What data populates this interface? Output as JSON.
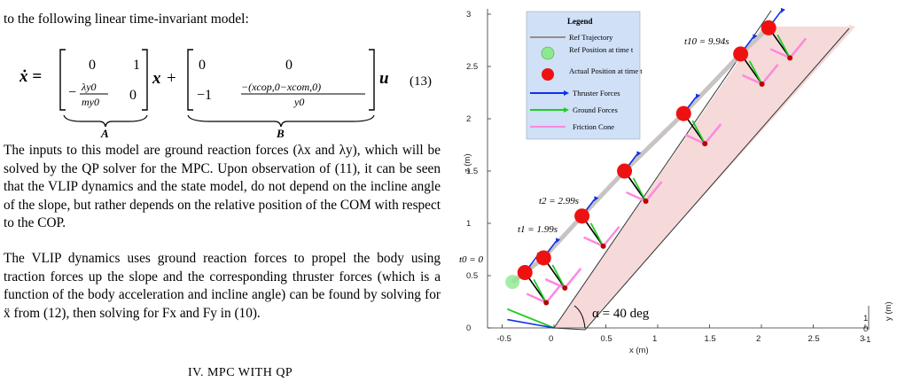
{
  "text": {
    "intro": "to the following linear time-invariant model:",
    "eq_number": "(13)",
    "para1": "The inputs to this model are ground reaction forces (λx and λy), which will be solved by the QP solver for the MPC. Upon observation of (11), it can be seen that the VLIP dynamics and the state model, do not depend on the incline angle of the slope, but rather depends on the relative position of the COM with respect to the COP.",
    "para2": "The VLIP dynamics uses ground reaction forces to propel the body using traction forces up the slope and the corresponding thruster forces (which is a function of the body acceleration and incline angle) can be found by solving for ẍ from (12), then solving for Fx and Fy in (10).",
    "section_heading": "IV. MPC WITH QP"
  },
  "equation": {
    "lhs": "ẋ =",
    "A_r1c1": "0",
    "A_r1c2": "1",
    "A_r2c1_num": "λy0",
    "A_r2c1_den": "my0",
    "A_r2c2": "0",
    "x_vec": "x",
    "B_r1c1": "0",
    "B_r1c2": "0",
    "B_r2c1": "−1",
    "B_r2c2_num": "−(xcop,0−xcom,0)",
    "B_r2c2_den": "y0",
    "u_vec": "u",
    "A_label": "A",
    "B_label": "B"
  },
  "figure": {
    "legend": {
      "title": "Legend",
      "items": [
        {
          "label": "Ref Trajectory",
          "color": "#9a8a8a"
        },
        {
          "label": "Ref Position at time t",
          "color": "#66dd66"
        },
        {
          "label": "Actual Position at time t",
          "color": "#ee1111"
        },
        {
          "label": "Thruster Forces",
          "color": "#1030ee"
        },
        {
          "label": "Ground Forces",
          "color": "#22cc22"
        },
        {
          "label": "Friction Cone",
          "color": "#ff88dd"
        }
      ],
      "bg": "#cfe0f7"
    },
    "annotations": {
      "t0": "t0 = 0",
      "t1": "t1 = 1.99s",
      "t2": "t2 = 2.99s",
      "t10": "t10 = 9.94s",
      "alpha": "α = 40 deg"
    },
    "axes": {
      "xlabel": "x (m)",
      "zlabel": "z (m)",
      "ylabel": "y (m)",
      "x_ticks": [
        "-0.5",
        "0",
        "0.5",
        "1",
        "1.5",
        "2",
        "2.5",
        "3"
      ],
      "z_ticks": [
        "0",
        "0.5",
        "1",
        "1.5",
        "2",
        "2.5",
        "3"
      ],
      "y_ticks": [
        "1",
        "0",
        "-1"
      ],
      "xlim": [
        -0.5,
        3
      ],
      "zlim": [
        0,
        3
      ]
    },
    "slope_angle_deg": 40,
    "positions": [
      {
        "x": -0.28,
        "z": 0.53
      },
      {
        "x": -0.1,
        "z": 0.67
      },
      {
        "x": 0.27,
        "z": 1.07
      },
      {
        "x": 0.68,
        "z": 1.5
      },
      {
        "x": 1.25,
        "z": 2.05
      },
      {
        "x": 1.8,
        "z": 2.62
      },
      {
        "x": 2.07,
        "z": 2.87
      }
    ],
    "ref_position": {
      "x": -0.4,
      "z": 0.44
    }
  }
}
